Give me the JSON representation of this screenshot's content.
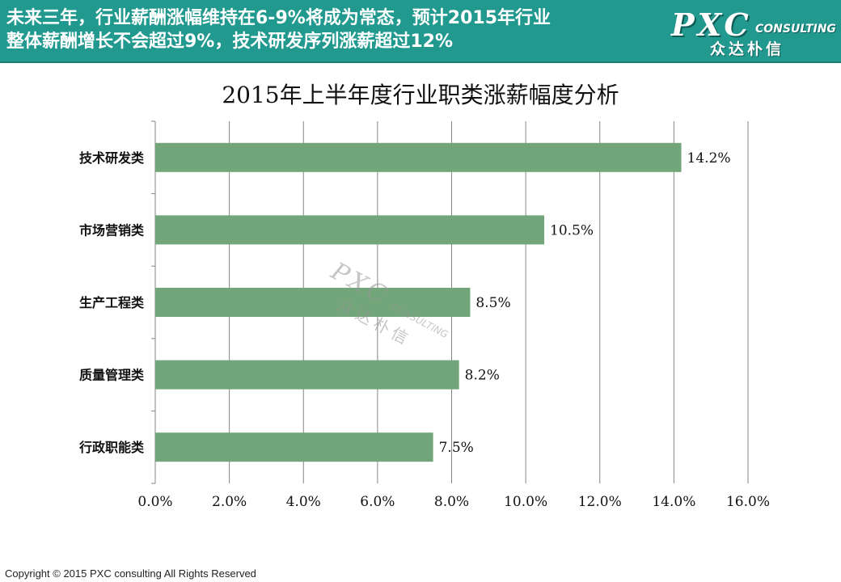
{
  "header": {
    "line1": "未来三年，行业薪酬涨幅维持在6-9%将成为常态，预计2015年行业",
    "line2": "整体薪酬增长不会超过9%，技术研发序列涨薪超过12%"
  },
  "logo": {
    "main": "PXC",
    "sub": "CONSULTING",
    "cn": "众达朴信"
  },
  "watermark": {
    "main": "PXC",
    "sub": "CONSULTING",
    "cn": "众达朴信"
  },
  "footer": {
    "copyright": "Copyright © 2015 PXC consulting All Rights Reserved"
  },
  "colors": {
    "header_bg": "#22998f",
    "bar": "#72a67a",
    "gridline": "#868686"
  },
  "chart_data": {
    "type": "bar",
    "orientation": "horizontal",
    "title": "2015年上半年度行业职类涨薪幅度分析",
    "categories": [
      "技术研发类",
      "市场营销类",
      "生产工程类",
      "质量管理类",
      "行政职能类"
    ],
    "values": [
      14.2,
      10.5,
      8.5,
      8.2,
      7.5
    ],
    "value_labels": [
      "14.2%",
      "10.5%",
      "8.5%",
      "8.2%",
      "7.5%"
    ],
    "xlim": [
      0,
      16
    ],
    "x_ticks": [
      0,
      2,
      4,
      6,
      8,
      10,
      12,
      14,
      16
    ],
    "x_tick_labels": [
      "0.0%",
      "2.0%",
      "4.0%",
      "6.0%",
      "8.0%",
      "10.0%",
      "12.0%",
      "14.0%",
      "16.0%"
    ],
    "xlabel": "",
    "ylabel": "",
    "grid": true,
    "legend": "none"
  }
}
